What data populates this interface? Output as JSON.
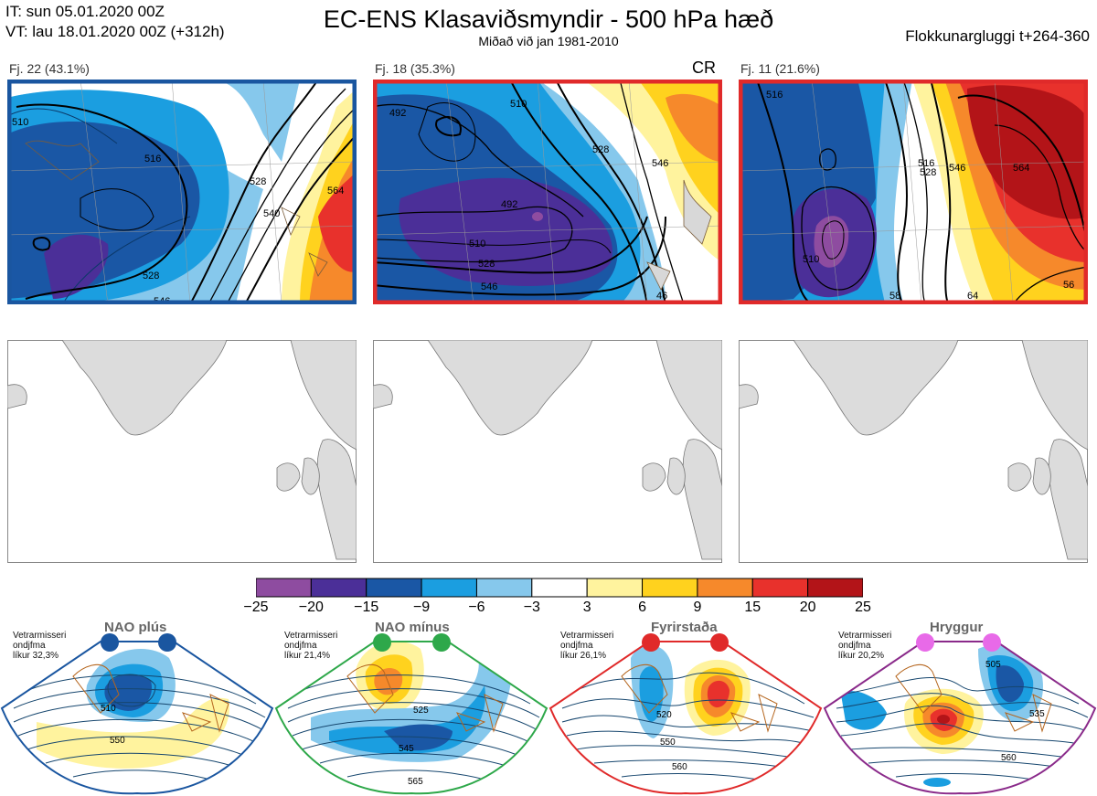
{
  "header": {
    "it": "IT: sun 05.01.2020 00Z",
    "vt": "VT: lau 18.01.2020 00Z  (+312h)",
    "title": "EC-ENS Klasaviðsmyndir - 500 hPa hæð",
    "subtitle": "Miðað við jan 1981-2010",
    "window": "Flokkunargluggi t+264-360"
  },
  "panels": [
    {
      "label": "Fj. 22 (43.1%)",
      "border_color": "#1a56a0",
      "tag": "",
      "contours": [
        "510",
        "516",
        "528",
        "540",
        "564",
        "528",
        "546"
      ]
    },
    {
      "label": "Fj. 18 (35.3%)",
      "border_color": "#e02a2a",
      "tag": "CR",
      "contours": [
        "492",
        "510",
        "528",
        "546",
        "492",
        "510",
        "528",
        "546",
        "46"
      ]
    },
    {
      "label": "Fj. 11 (21.6%)",
      "border_color": "#e02a2a",
      "tag": "",
      "contours": [
        "516",
        "546",
        "564",
        "510",
        "528",
        "516",
        "58",
        "64",
        "56"
      ]
    }
  ],
  "colorbar": {
    "ticks": [
      "−25",
      "−20",
      "−15",
      "−9",
      "−6",
      "−3",
      "3",
      "6",
      "9",
      "15",
      "20",
      "25"
    ],
    "colors": [
      "#8e4ca0",
      "#4b2f98",
      "#1a57a5",
      "#1b9ee0",
      "#86c8ec",
      "#ffffff",
      "#fff39e",
      "#ffd21e",
      "#f6892b",
      "#e8312c",
      "#b31418"
    ]
  },
  "regimes": [
    {
      "name": "NAO plús",
      "desc": [
        "Vetrarmisseri",
        "ondjfma",
        "líkur 32,3%"
      ],
      "color": "#1a56a0",
      "dot": "#1a56a0",
      "contours": [
        "510",
        "550"
      ]
    },
    {
      "name": "NAO mínus",
      "desc": [
        "Vetrarmisseri",
        "ondjfma",
        "líkur 21,4%"
      ],
      "color": "#2ea84a",
      "dot": "#2ea84a",
      "contours": [
        "525",
        "545",
        "565"
      ]
    },
    {
      "name": "Fyrirstaða",
      "desc": [
        "Vetrarmisseri",
        "ondjfma",
        "líkur 26,1%"
      ],
      "color": "#e02a2a",
      "dot": "#e02a2a",
      "contours": [
        "520",
        "550",
        "560"
      ]
    },
    {
      "name": "Hryggur",
      "desc": [
        "Vetrarmisseri",
        "ondjfma",
        "líkur 20,2%"
      ],
      "color": "#8a2a8a",
      "dot": "#e86ae8",
      "contours": [
        "505",
        "535",
        "560"
      ]
    }
  ]
}
